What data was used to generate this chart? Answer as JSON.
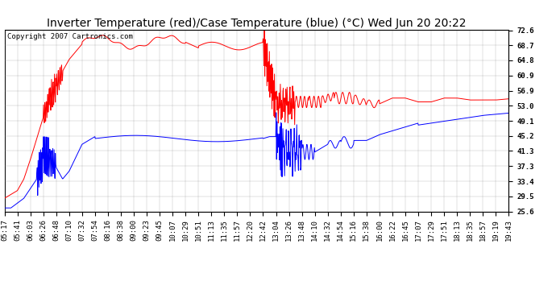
{
  "title": "Inverter Temperature (red)/Case Temperature (blue) (°C) Wed Jun 20 20:22",
  "copyright": "Copyright 2007 Cartronics.com",
  "ylabel_right_ticks": [
    72.6,
    68.7,
    64.8,
    60.9,
    56.9,
    53.0,
    49.1,
    45.2,
    41.3,
    37.3,
    33.4,
    29.5,
    25.6
  ],
  "ylim": [
    25.6,
    72.6
  ],
  "x_labels": [
    "05:17",
    "05:41",
    "06:03",
    "06:26",
    "06:48",
    "07:10",
    "07:32",
    "07:54",
    "08:16",
    "08:38",
    "09:00",
    "09:23",
    "09:45",
    "10:07",
    "10:29",
    "10:51",
    "11:13",
    "11:35",
    "11:57",
    "12:20",
    "12:42",
    "13:04",
    "13:26",
    "13:48",
    "14:10",
    "14:32",
    "14:54",
    "15:16",
    "15:38",
    "16:00",
    "16:22",
    "16:45",
    "17:07",
    "17:29",
    "17:51",
    "18:13",
    "18:35",
    "18:57",
    "19:19",
    "19:43"
  ],
  "bg_color": "#ffffff",
  "grid_color": "#888888",
  "red_color": "#ff0000",
  "blue_color": "#0000ff",
  "title_fontsize": 10,
  "tick_fontsize": 6.5,
  "copyright_fontsize": 6.5
}
